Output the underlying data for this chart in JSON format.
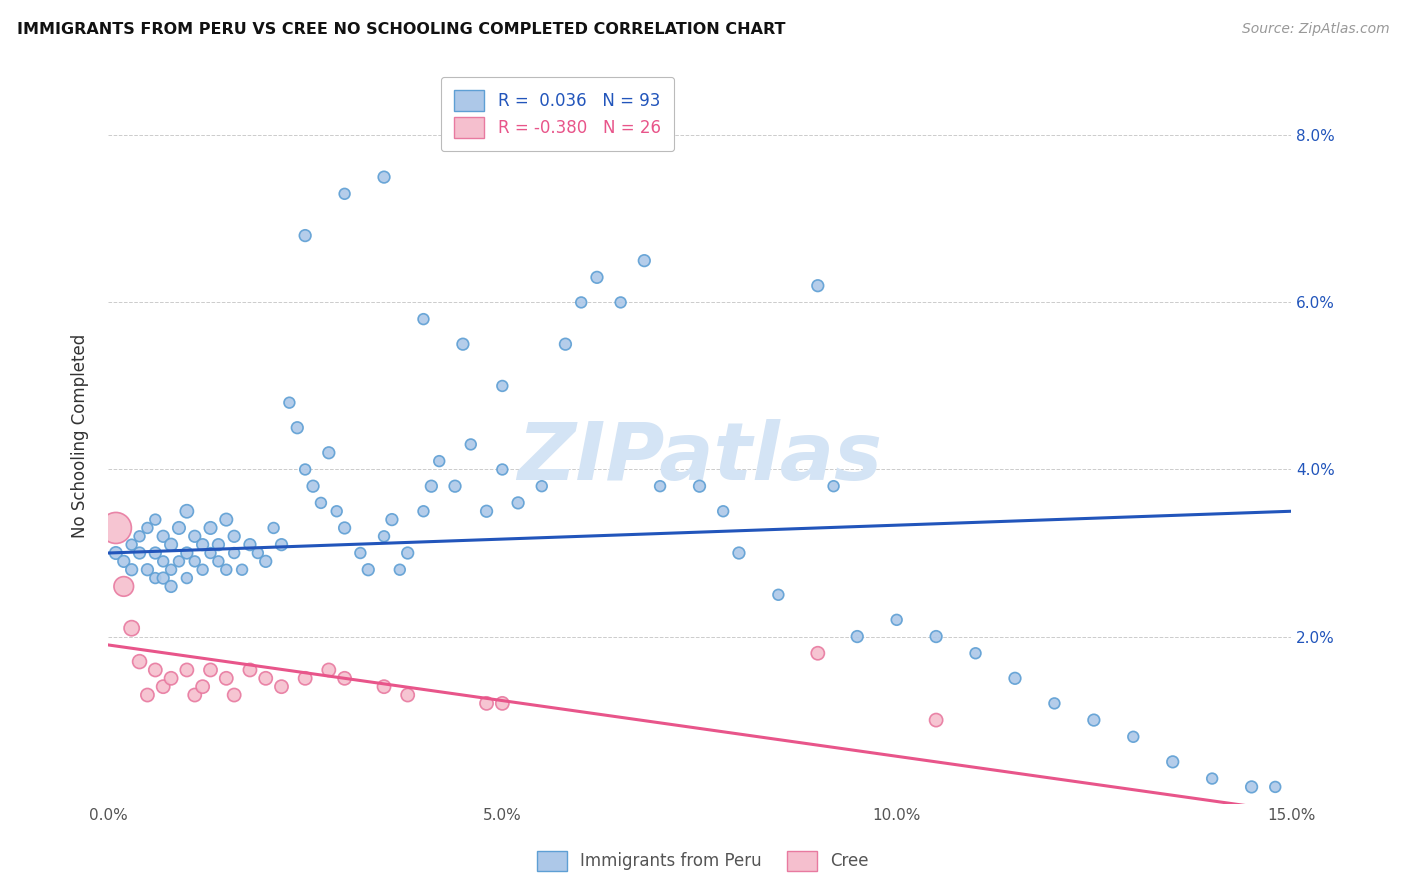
{
  "title": "IMMIGRANTS FROM PERU VS CREE NO SCHOOLING COMPLETED CORRELATION CHART",
  "source": "Source: ZipAtlas.com",
  "ylabel": "No Schooling Completed",
  "xlim": [
    0.0,
    0.15
  ],
  "ylim": [
    0.0,
    0.088
  ],
  "xticks": [
    0.0,
    0.05,
    0.1,
    0.15
  ],
  "yticks": [
    0.0,
    0.02,
    0.04,
    0.06,
    0.08
  ],
  "xticklabels": [
    "0.0%",
    "5.0%",
    "10.0%",
    "15.0%"
  ],
  "right_yticklabels": [
    "",
    "2.0%",
    "4.0%",
    "6.0%",
    "8.0%"
  ],
  "peru_R": "0.036",
  "peru_N": "93",
  "cree_R": "-0.380",
  "cree_N": "26",
  "peru_color": "#adc8e8",
  "peru_edge_color": "#5e9fd4",
  "cree_color": "#f5bfce",
  "cree_edge_color": "#e87aa0",
  "peru_line_color": "#2255bb",
  "cree_line_color": "#e8558a",
  "watermark_color": "#d4e4f5",
  "background_color": "#ffffff",
  "grid_color": "#cccccc",
  "peru_line_y0": 0.03,
  "peru_line_y1": 0.035,
  "cree_line_y0": 0.019,
  "cree_line_y1": -0.001,
  "peru_x": [
    0.001,
    0.002,
    0.003,
    0.003,
    0.004,
    0.004,
    0.005,
    0.005,
    0.006,
    0.006,
    0.006,
    0.007,
    0.007,
    0.007,
    0.008,
    0.008,
    0.008,
    0.009,
    0.009,
    0.01,
    0.01,
    0.01,
    0.011,
    0.011,
    0.012,
    0.012,
    0.013,
    0.013,
    0.014,
    0.014,
    0.015,
    0.015,
    0.016,
    0.016,
    0.017,
    0.018,
    0.019,
    0.02,
    0.021,
    0.022,
    0.023,
    0.024,
    0.025,
    0.026,
    0.027,
    0.028,
    0.029,
    0.03,
    0.032,
    0.033,
    0.035,
    0.036,
    0.037,
    0.038,
    0.04,
    0.041,
    0.042,
    0.044,
    0.046,
    0.048,
    0.05,
    0.052,
    0.055,
    0.058,
    0.06,
    0.062,
    0.065,
    0.068,
    0.07,
    0.075,
    0.078,
    0.08,
    0.085,
    0.09,
    0.092,
    0.095,
    0.1,
    0.105,
    0.11,
    0.115,
    0.12,
    0.125,
    0.13,
    0.135,
    0.14,
    0.145,
    0.148,
    0.035,
    0.03,
    0.025,
    0.04,
    0.045,
    0.05
  ],
  "peru_y": [
    0.03,
    0.029,
    0.031,
    0.028,
    0.032,
    0.03,
    0.033,
    0.028,
    0.034,
    0.03,
    0.027,
    0.032,
    0.029,
    0.027,
    0.031,
    0.028,
    0.026,
    0.033,
    0.029,
    0.035,
    0.03,
    0.027,
    0.032,
    0.029,
    0.031,
    0.028,
    0.033,
    0.03,
    0.031,
    0.029,
    0.034,
    0.028,
    0.032,
    0.03,
    0.028,
    0.031,
    0.03,
    0.029,
    0.033,
    0.031,
    0.048,
    0.045,
    0.04,
    0.038,
    0.036,
    0.042,
    0.035,
    0.033,
    0.03,
    0.028,
    0.032,
    0.034,
    0.028,
    0.03,
    0.035,
    0.038,
    0.041,
    0.038,
    0.043,
    0.035,
    0.04,
    0.036,
    0.038,
    0.055,
    0.06,
    0.063,
    0.06,
    0.065,
    0.038,
    0.038,
    0.035,
    0.03,
    0.025,
    0.062,
    0.038,
    0.02,
    0.022,
    0.02,
    0.018,
    0.015,
    0.012,
    0.01,
    0.008,
    0.005,
    0.003,
    0.002,
    0.002,
    0.075,
    0.073,
    0.068,
    0.058,
    0.055,
    0.05
  ],
  "peru_sizes": [
    80,
    70,
    60,
    70,
    60,
    70,
    60,
    70,
    60,
    70,
    60,
    70,
    60,
    70,
    80,
    60,
    70,
    80,
    60,
    90,
    70,
    60,
    70,
    60,
    70,
    60,
    80,
    60,
    70,
    60,
    80,
    60,
    70,
    60,
    60,
    70,
    60,
    70,
    60,
    70,
    60,
    70,
    60,
    70,
    60,
    70,
    60,
    70,
    60,
    70,
    60,
    70,
    60,
    70,
    60,
    70,
    60,
    70,
    60,
    70,
    60,
    70,
    60,
    70,
    60,
    70,
    60,
    70,
    60,
    70,
    60,
    70,
    60,
    70,
    60,
    70,
    60,
    70,
    60,
    70,
    60,
    70,
    60,
    70,
    60,
    70,
    60,
    70,
    60,
    70,
    60,
    70,
    60
  ],
  "cree_x": [
    0.001,
    0.002,
    0.003,
    0.004,
    0.005,
    0.006,
    0.007,
    0.008,
    0.01,
    0.011,
    0.012,
    0.013,
    0.015,
    0.016,
    0.018,
    0.02,
    0.022,
    0.025,
    0.028,
    0.03,
    0.035,
    0.038,
    0.048,
    0.05,
    0.09,
    0.105
  ],
  "cree_y": [
    0.033,
    0.026,
    0.021,
    0.017,
    0.013,
    0.016,
    0.014,
    0.015,
    0.016,
    0.013,
    0.014,
    0.016,
    0.015,
    0.013,
    0.016,
    0.015,
    0.014,
    0.015,
    0.016,
    0.015,
    0.014,
    0.013,
    0.012,
    0.012,
    0.018,
    0.01
  ],
  "cree_sizes": [
    500,
    200,
    120,
    100,
    90,
    90,
    90,
    90,
    90,
    90,
    90,
    90,
    90,
    90,
    90,
    90,
    90,
    90,
    90,
    90,
    90,
    90,
    90,
    90,
    90,
    90
  ]
}
